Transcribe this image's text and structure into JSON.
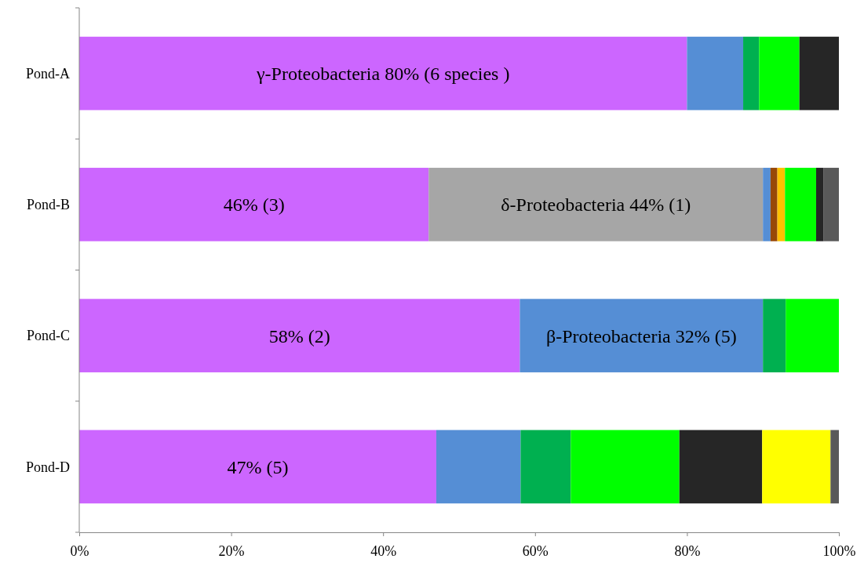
{
  "chart_data": {
    "type": "bar",
    "orientation": "horizontal",
    "stacked": true,
    "categories": [
      "Pond-A",
      "Pond-B",
      "Pond-C",
      "Pond-D"
    ],
    "series": [
      {
        "color": "#cc66ff",
        "values": [
          80,
          46,
          58,
          47
        ],
        "value_labels": [
          "γ-Proteobacteria 80% (6 species )",
          "46% (3)",
          "58% (2)",
          "47% (5)"
        ]
      },
      {
        "color": "#a6a6a6",
        "values": [
          null,
          44,
          null,
          null
        ],
        "value_labels": [
          null,
          "δ-Proteobacteria 44% (1)",
          null,
          null
        ]
      },
      {
        "color": "#558ed5",
        "values": [
          7.4,
          1.0,
          32,
          11.1
        ],
        "value_labels": [
          null,
          null,
          "β-Proteobacteria 32% (5)",
          null
        ]
      },
      {
        "color": "#984807",
        "values": [
          null,
          0.9,
          null,
          null
        ]
      },
      {
        "color": "#ffc000",
        "values": [
          null,
          1.0,
          null,
          null
        ]
      },
      {
        "color": "#00b050",
        "values": [
          2.1,
          null,
          3.0,
          6.6
        ]
      },
      {
        "color": "#00ff00",
        "values": [
          5.3,
          4.1,
          7.0,
          14.3
        ]
      },
      {
        "color": "#262626",
        "values": [
          5.2,
          1.0,
          null,
          10.9
        ]
      },
      {
        "color": "#ffff00",
        "values": [
          null,
          null,
          null,
          9.0
        ]
      },
      {
        "color": "#595959",
        "values": [
          null,
          2.0,
          null,
          1.1
        ]
      }
    ],
    "xlim": [
      0,
      100
    ],
    "xticks": [
      {
        "value": 0,
        "label": "0%"
      },
      {
        "value": 20,
        "label": "20%"
      },
      {
        "value": 40,
        "label": "40%"
      },
      {
        "value": 60,
        "label": "60%"
      },
      {
        "value": 80,
        "label": "80%"
      },
      {
        "value": 100,
        "label": "100%"
      }
    ],
    "grid": false
  }
}
